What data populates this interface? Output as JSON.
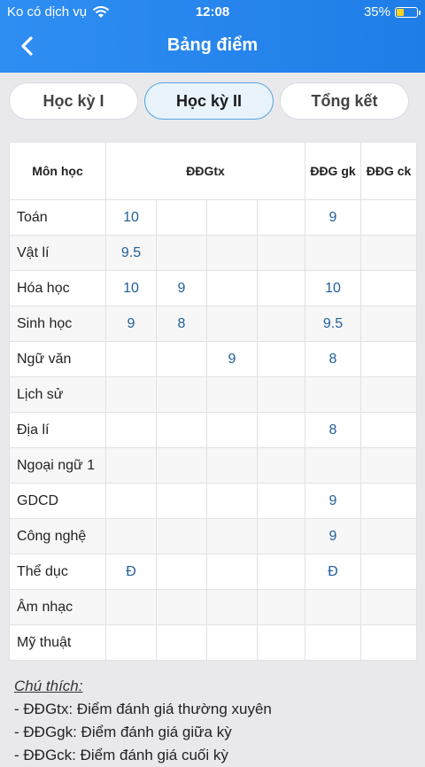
{
  "status": {
    "carrier": "Ko có dịch vụ",
    "time": "12:08",
    "battery": "35%"
  },
  "header": {
    "title": "Bảng điểm"
  },
  "tabs": [
    {
      "label": "Học kỳ I",
      "active": false
    },
    {
      "label": "Học kỳ II",
      "active": true
    },
    {
      "label": "Tổng kết",
      "active": false
    }
  ],
  "table": {
    "headers": {
      "subject": "Môn học",
      "ddgtx": "ĐĐGtx",
      "ddggk": "ĐĐG gk",
      "ddgck": "ĐĐG ck"
    },
    "rows": [
      {
        "subject": "Toán",
        "tx": [
          "10",
          "",
          "",
          ""
        ],
        "gk": "9",
        "ck": ""
      },
      {
        "subject": "Vật lí",
        "tx": [
          "9.5",
          "",
          "",
          ""
        ],
        "gk": "",
        "ck": ""
      },
      {
        "subject": "Hóa học",
        "tx": [
          "10",
          "9",
          "",
          ""
        ],
        "gk": "10",
        "ck": ""
      },
      {
        "subject": "Sinh học",
        "tx": [
          "9",
          "8",
          "",
          ""
        ],
        "gk": "9.5",
        "ck": ""
      },
      {
        "subject": "Ngữ văn",
        "tx": [
          "",
          "",
          "9",
          ""
        ],
        "gk": "8",
        "ck": ""
      },
      {
        "subject": "Lịch sử",
        "tx": [
          "",
          "",
          "",
          ""
        ],
        "gk": "",
        "ck": ""
      },
      {
        "subject": "Địa lí",
        "tx": [
          "",
          "",
          "",
          ""
        ],
        "gk": "8",
        "ck": ""
      },
      {
        "subject": "Ngoại ngữ 1",
        "tx": [
          "",
          "",
          "",
          ""
        ],
        "gk": "",
        "ck": ""
      },
      {
        "subject": "GDCD",
        "tx": [
          "",
          "",
          "",
          ""
        ],
        "gk": "9",
        "ck": ""
      },
      {
        "subject": "Công nghệ",
        "tx": [
          "",
          "",
          "",
          ""
        ],
        "gk": "9",
        "ck": ""
      },
      {
        "subject": "Thể dục",
        "tx": [
          "Đ",
          "",
          "",
          ""
        ],
        "gk": "Đ",
        "ck": ""
      },
      {
        "subject": "Âm nhạc",
        "tx": [
          "",
          "",
          "",
          ""
        ],
        "gk": "",
        "ck": ""
      },
      {
        "subject": "Mỹ thuật",
        "tx": [
          "",
          "",
          "",
          ""
        ],
        "gk": "",
        "ck": ""
      }
    ]
  },
  "notes": {
    "title": "Chú thích:",
    "items": [
      "- ĐĐGtx: Điểm đánh giá thường xuyên",
      "- ĐĐGgk: Điểm đánh giá giữa kỳ",
      "- ĐĐGck: Điểm đánh giá cuối kỳ"
    ]
  },
  "colors": {
    "header": "#2f8ef2",
    "accent": "#56a4de",
    "score_text": "#1f5f9c"
  },
  "icons": {
    "back": "chevron-left-icon",
    "wifi": "wifi-icon",
    "battery": "battery-icon"
  }
}
